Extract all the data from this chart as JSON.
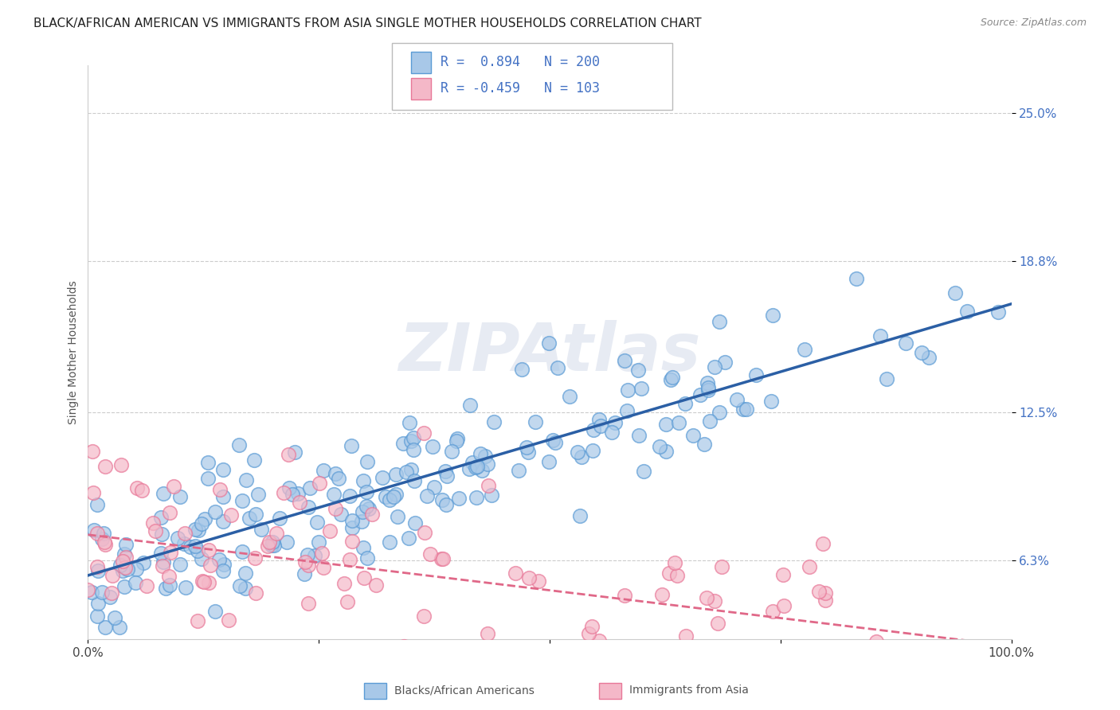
{
  "title": "BLACK/AFRICAN AMERICAN VS IMMIGRANTS FROM ASIA SINGLE MOTHER HOUSEHOLDS CORRELATION CHART",
  "source": "Source: ZipAtlas.com",
  "ylabel": "Single Mother Households",
  "ytick_labels": [
    "6.3%",
    "12.5%",
    "18.8%",
    "25.0%"
  ],
  "ytick_values": [
    0.063,
    0.125,
    0.188,
    0.25
  ],
  "xlim": [
    0.0,
    1.0
  ],
  "ylim": [
    0.03,
    0.27
  ],
  "blue_R": 0.894,
  "blue_N": 200,
  "pink_R": -0.459,
  "pink_N": 103,
  "blue_fill_color": "#a8c8e8",
  "blue_edge_color": "#5b9bd5",
  "blue_line_color": "#2b5fa5",
  "pink_fill_color": "#f4b8c8",
  "pink_edge_color": "#e87898",
  "pink_line_color": "#e06888",
  "background_color": "#ffffff",
  "watermark": "ZIPAtlas",
  "legend_blue_label": "Blacks/African Americans",
  "legend_pink_label": "Immigrants from Asia",
  "blue_seed": 7,
  "pink_seed": 13,
  "title_fontsize": 11,
  "axis_label_fontsize": 10,
  "tick_fontsize": 11,
  "legend_fontsize": 12
}
